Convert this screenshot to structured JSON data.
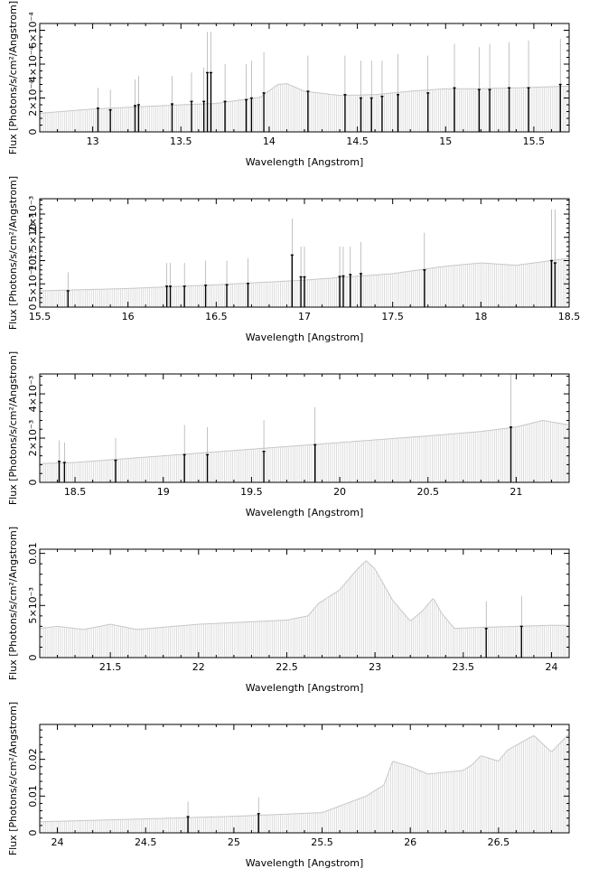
{
  "figure": {
    "ylabel": "Flux [Photons/s/cm²/Angstrom]",
    "xlabel": "Wavelength [Angstrom]"
  },
  "chart_data": [
    {
      "type": "line",
      "title": "",
      "xlabel": "Wavelength [Angstrom]",
      "ylabel": "Flux [Photons/s/cm²/Angstrom]",
      "xlim": [
        12.7,
        15.7
      ],
      "ylim": [
        0,
        0.00064
      ],
      "xticks": [
        13,
        13.5,
        14,
        14.5,
        15,
        15.5
      ],
      "xtick_labels": [
        "13",
        "13.5",
        "14",
        "14.5",
        "15",
        "15.5"
      ],
      "yticks": [
        0,
        0.0002,
        0.0004,
        0.0006
      ],
      "ytick_labels": [
        "0",
        "2×10⁻⁴",
        "4×10⁻⁴",
        "6×10⁻⁴"
      ],
      "grid": false,
      "model": {
        "x": [
          12.7,
          13.0,
          13.5,
          13.7,
          13.95,
          14.05,
          14.1,
          14.2,
          14.4,
          14.6,
          14.8,
          15.0,
          15.2,
          15.4,
          15.7
        ],
        "y": [
          0.00011,
          0.000135,
          0.00016,
          0.000168,
          0.000205,
          0.00028,
          0.000285,
          0.00024,
          0.000215,
          0.00022,
          0.00024,
          0.000255,
          0.000255,
          0.00026,
          0.00027
        ]
      },
      "bins": [
        {
          "x": 13.03,
          "y": 0.00014,
          "err": 0.00026
        },
        {
          "x": 13.1,
          "y": 0.00013,
          "err": 0.00025
        },
        {
          "x": 13.24,
          "y": 0.000155,
          "err": 0.00031
        },
        {
          "x": 13.26,
          "y": 0.00016,
          "err": 0.00033
        },
        {
          "x": 13.45,
          "y": 0.000165,
          "err": 0.00033
        },
        {
          "x": 13.56,
          "y": 0.00018,
          "err": 0.00035
        },
        {
          "x": 13.63,
          "y": 0.00018,
          "err": 0.00038
        },
        {
          "x": 13.65,
          "y": 0.00035,
          "err": 0.00059
        },
        {
          "x": 13.67,
          "y": 0.00035,
          "err": 0.00059
        },
        {
          "x": 13.75,
          "y": 0.00018,
          "err": 0.0004
        },
        {
          "x": 13.87,
          "y": 0.00019,
          "err": 0.0004
        },
        {
          "x": 13.9,
          "y": 0.0002,
          "err": 0.00042
        },
        {
          "x": 13.97,
          "y": 0.00023,
          "err": 0.00047
        },
        {
          "x": 14.22,
          "y": 0.00024,
          "err": 0.00045
        },
        {
          "x": 14.43,
          "y": 0.00022,
          "err": 0.00045
        },
        {
          "x": 14.52,
          "y": 0.0002,
          "err": 0.00042
        },
        {
          "x": 14.58,
          "y": 0.0002,
          "err": 0.00042
        },
        {
          "x": 14.64,
          "y": 0.00021,
          "err": 0.00042
        },
        {
          "x": 14.73,
          "y": 0.00022,
          "err": 0.00046
        },
        {
          "x": 14.9,
          "y": 0.00023,
          "err": 0.00045
        },
        {
          "x": 15.05,
          "y": 0.00026,
          "err": 0.00052
        },
        {
          "x": 15.19,
          "y": 0.00025,
          "err": 0.0005
        },
        {
          "x": 15.25,
          "y": 0.00025,
          "err": 0.00052
        },
        {
          "x": 15.36,
          "y": 0.00026,
          "err": 0.00053
        },
        {
          "x": 15.47,
          "y": 0.00026,
          "err": 0.00054
        },
        {
          "x": 15.65,
          "y": 0.00028,
          "err": 0.00055
        }
      ]
    },
    {
      "type": "line",
      "title": "",
      "xlabel": "Wavelength [Angstrom]",
      "ylabel": "Flux [Photons/s/cm²/Angstrom]",
      "xlim": [
        15.5,
        18.5
      ],
      "ylim": [
        0,
        0.00233
      ],
      "xticks": [
        15.5,
        16,
        16.5,
        17,
        17.5,
        18,
        18.5
      ],
      "xtick_labels": [
        "15.5",
        "16",
        "16.5",
        "17",
        "17.5",
        "18",
        "18.5"
      ],
      "yticks": [
        0,
        0.0005,
        0.001,
        0.0015,
        0.002
      ],
      "ytick_labels": [
        "0",
        "5×10⁻⁴",
        "10⁻³",
        "1.5×10⁻³",
        "2×10⁻³"
      ],
      "grid": false,
      "model": {
        "x": [
          15.5,
          16.0,
          16.5,
          17.0,
          17.5,
          17.8,
          18.0,
          18.2,
          18.5
        ],
        "y": [
          0.00035,
          0.0004,
          0.00048,
          0.00058,
          0.00072,
          0.00088,
          0.00095,
          0.0009,
          0.00105
        ]
      },
      "bins": [
        {
          "x": 15.66,
          "y": 0.00035,
          "err": 0.00075
        },
        {
          "x": 16.22,
          "y": 0.00045,
          "err": 0.00095
        },
        {
          "x": 16.24,
          "y": 0.00045,
          "err": 0.00095
        },
        {
          "x": 16.32,
          "y": 0.00045,
          "err": 0.00095
        },
        {
          "x": 16.44,
          "y": 0.00047,
          "err": 0.001
        },
        {
          "x": 16.56,
          "y": 0.00048,
          "err": 0.001
        },
        {
          "x": 16.68,
          "y": 0.00051,
          "err": 0.00105
        },
        {
          "x": 16.93,
          "y": 0.00112,
          "err": 0.0019
        },
        {
          "x": 16.98,
          "y": 0.00065,
          "err": 0.0013
        },
        {
          "x": 17.0,
          "y": 0.00065,
          "err": 0.0013
        },
        {
          "x": 17.2,
          "y": 0.00066,
          "err": 0.0013
        },
        {
          "x": 17.22,
          "y": 0.00067,
          "err": 0.0013
        },
        {
          "x": 17.26,
          "y": 0.0007,
          "err": 0.0013
        },
        {
          "x": 17.32,
          "y": 0.00072,
          "err": 0.0014
        },
        {
          "x": 17.68,
          "y": 0.0008,
          "err": 0.0016
        },
        {
          "x": 18.4,
          "y": 0.001,
          "err": 0.0021
        },
        {
          "x": 18.42,
          "y": 0.00095,
          "err": 0.0021
        }
      ]
    },
    {
      "type": "line",
      "title": "",
      "xlabel": "Wavelength [Angstrom]",
      "ylabel": "Flux [Photons/s/cm²/Angstrom]",
      "xlim": [
        18.3,
        21.3
      ],
      "ylim": [
        0,
        0.0049
      ],
      "xticks": [
        18.5,
        19,
        19.5,
        20,
        20.5,
        21
      ],
      "xtick_labels": [
        "18.5",
        "19",
        "19.5",
        "20",
        "20.5",
        "21"
      ],
      "yticks": [
        0,
        0.002,
        0.004
      ],
      "ytick_labels": [
        "0",
        "2×10⁻³",
        "4×10⁻³"
      ],
      "grid": false,
      "model": {
        "x": [
          18.3,
          18.5,
          19.0,
          19.5,
          20.0,
          20.5,
          20.8,
          21.0,
          21.15,
          21.3
        ],
        "y": [
          0.00085,
          0.0009,
          0.0012,
          0.0015,
          0.0018,
          0.0021,
          0.0023,
          0.0025,
          0.0028,
          0.0026
        ]
      },
      "bins": [
        {
          "x": 18.41,
          "y": 0.00095,
          "err": 0.0019
        },
        {
          "x": 18.44,
          "y": 0.0009,
          "err": 0.0018
        },
        {
          "x": 18.73,
          "y": 0.001,
          "err": 0.002
        },
        {
          "x": 19.12,
          "y": 0.00125,
          "err": 0.0026
        },
        {
          "x": 19.25,
          "y": 0.00125,
          "err": 0.0025
        },
        {
          "x": 19.57,
          "y": 0.0014,
          "err": 0.0028
        },
        {
          "x": 19.86,
          "y": 0.0017,
          "err": 0.0034
        },
        {
          "x": 20.97,
          "y": 0.0025,
          "err": 0.0049
        }
      ]
    },
    {
      "type": "line",
      "title": "",
      "xlabel": "Wavelength [Angstrom]",
      "ylabel": "Flux [Photons/s/cm²/Angstrom]",
      "xlim": [
        21.1,
        24.1
      ],
      "ylim": [
        0,
        0.0104
      ],
      "xticks": [
        21.5,
        22,
        22.5,
        23,
        23.5,
        24
      ],
      "xtick_labels": [
        "21.5",
        "22",
        "22.5",
        "23",
        "23.5",
        "24"
      ],
      "yticks": [
        0,
        0.005,
        0.01
      ],
      "ytick_labels": [
        "0",
        "5×10⁻³",
        "0.01"
      ],
      "grid": false,
      "model": {
        "x": [
          21.1,
          21.2,
          21.35,
          21.5,
          21.65,
          22.0,
          22.5,
          22.62,
          22.68,
          22.8,
          22.9,
          22.95,
          23.0,
          23.1,
          23.2,
          23.27,
          23.33,
          23.38,
          23.45,
          23.6,
          24.0,
          24.1
        ],
        "y": [
          0.0028,
          0.003,
          0.0027,
          0.0032,
          0.0027,
          0.0032,
          0.0036,
          0.004,
          0.0052,
          0.0065,
          0.0085,
          0.0093,
          0.0085,
          0.0055,
          0.0035,
          0.0045,
          0.0057,
          0.0042,
          0.0028,
          0.0029,
          0.0031,
          0.0031
        ]
      },
      "bins": [
        {
          "x": 23.63,
          "y": 0.0028,
          "err": 0.0054
        },
        {
          "x": 23.83,
          "y": 0.003,
          "err": 0.0059
        }
      ]
    },
    {
      "type": "line",
      "title": "",
      "xlabel": "Wavelength [Angstrom]",
      "ylabel": "Flux [Photons/s/cm²/Angstrom]",
      "xlim": [
        23.9,
        26.9
      ],
      "ylim": [
        0,
        0.0295
      ],
      "xticks": [
        24,
        24.5,
        25,
        25.5,
        26,
        26.5
      ],
      "xtick_labels": [
        "24",
        "24.5",
        "25",
        "25.5",
        "26",
        "26.5"
      ],
      "yticks": [
        0,
        0.01,
        0.02
      ],
      "ytick_labels": [
        "0",
        "0.01",
        "0.02"
      ],
      "grid": false,
      "model": {
        "x": [
          23.9,
          24.5,
          25.0,
          25.5,
          25.75,
          25.85,
          25.9,
          26.0,
          26.1,
          26.3,
          26.35,
          26.4,
          26.5,
          26.55,
          26.7,
          26.8,
          26.9
        ],
        "y": [
          0.003,
          0.0038,
          0.0045,
          0.0055,
          0.01,
          0.013,
          0.0195,
          0.018,
          0.016,
          0.017,
          0.0185,
          0.021,
          0.0195,
          0.0225,
          0.0265,
          0.022,
          0.027
        ]
      },
      "bins": [
        {
          "x": 24.74,
          "y": 0.0044,
          "err": 0.0085
        },
        {
          "x": 25.14,
          "y": 0.0052,
          "err": 0.0097
        }
      ]
    }
  ]
}
